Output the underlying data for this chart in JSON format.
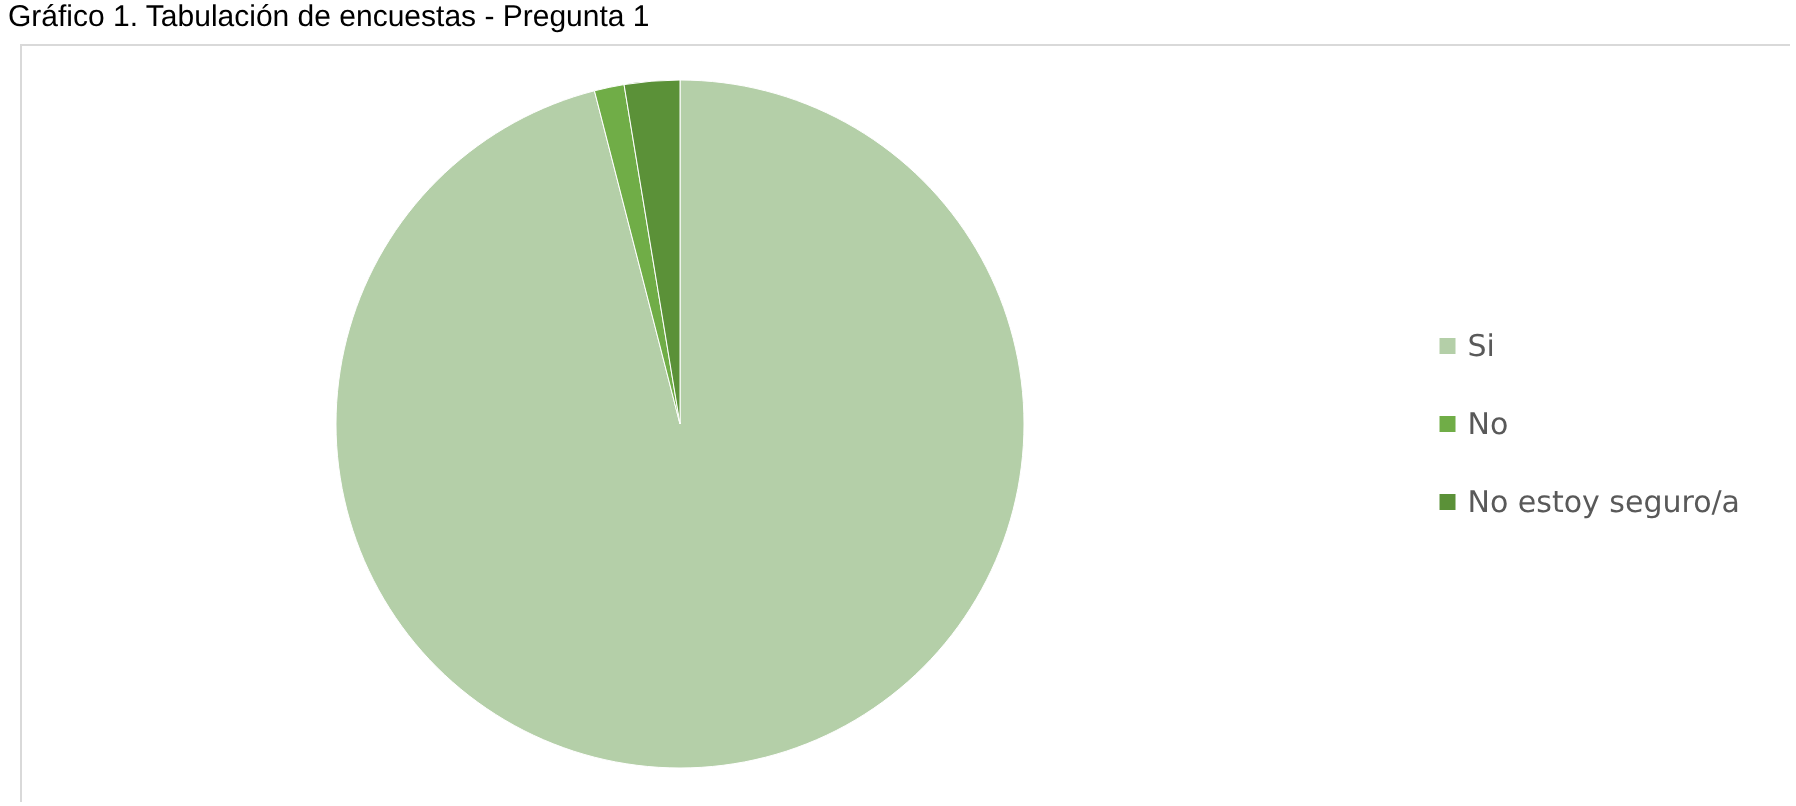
{
  "chart_data": {
    "type": "pie",
    "title": "Gráfico 1. Tabulación de encuestas - Pregunta 1",
    "categories": [
      "Si",
      "No",
      "No estoy seguro/a"
    ],
    "values": [
      96,
      1.4,
      2.6
    ],
    "colors": [
      "#b4cfa8",
      "#70ad47",
      "#5b9138"
    ],
    "legend": "right"
  }
}
